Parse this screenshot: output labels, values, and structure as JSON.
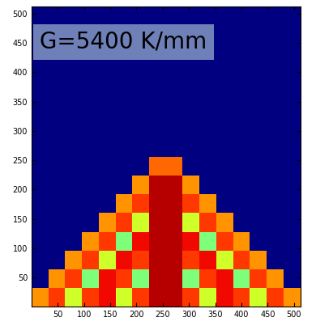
{
  "chart_data": {
    "type": "heatmap",
    "annotation": "G=5400 K/mm",
    "x_edges": [
      0,
      32,
      64,
      96,
      128,
      160,
      192,
      224,
      256,
      288,
      320,
      352,
      384,
      416,
      448,
      480,
      512
    ],
    "y_edges": [
      0,
      32,
      64,
      96,
      128,
      160,
      192,
      224,
      256,
      288,
      320,
      352,
      384,
      416,
      448,
      480,
      512
    ],
    "cells": [
      [
        0.75,
        0.85,
        0.6,
        0.85,
        0.9,
        0.6,
        0.85,
        0.95,
        0.95,
        0.85,
        0.6,
        0.9,
        0.85,
        0.6,
        0.85,
        0.75
      ],
      [
        0,
        0.75,
        0.85,
        0.5,
        0.9,
        0.85,
        0.5,
        0.95,
        0.95,
        0.5,
        0.85,
        0.9,
        0.5,
        0.85,
        0.75,
        0
      ],
      [
        0,
        0,
        0.75,
        0.85,
        0.6,
        0.9,
        0.85,
        0.95,
        0.95,
        0.85,
        0.9,
        0.6,
        0.85,
        0.75,
        0,
        0
      ],
      [
        0,
        0,
        0,
        0.75,
        0.85,
        0.5,
        0.9,
        0.95,
        0.95,
        0.9,
        0.5,
        0.85,
        0.75,
        0,
        0,
        0
      ],
      [
        0,
        0,
        0,
        0,
        0.75,
        0.85,
        0.6,
        0.95,
        0.95,
        0.6,
        0.85,
        0.75,
        0,
        0,
        0,
        0
      ],
      [
        0,
        0,
        0,
        0,
        0,
        0.75,
        0.85,
        0.95,
        0.95,
        0.85,
        0.75,
        0,
        0,
        0,
        0,
        0
      ],
      [
        0,
        0,
        0,
        0,
        0,
        0,
        0.75,
        0.95,
        0.95,
        0.75,
        0,
        0,
        0,
        0,
        0,
        0
      ],
      [
        0,
        0,
        0,
        0,
        0,
        0,
        0,
        0.8,
        0.8,
        0,
        0,
        0,
        0,
        0,
        0,
        0
      ],
      [
        0,
        0,
        0,
        0,
        0,
        0,
        0,
        0,
        0,
        0,
        0,
        0,
        0,
        0,
        0,
        0
      ],
      [
        0,
        0,
        0,
        0,
        0,
        0,
        0,
        0,
        0,
        0,
        0,
        0,
        0,
        0,
        0,
        0
      ],
      [
        0,
        0,
        0,
        0,
        0,
        0,
        0,
        0,
        0,
        0,
        0,
        0,
        0,
        0,
        0,
        0
      ],
      [
        0,
        0,
        0,
        0,
        0,
        0,
        0,
        0,
        0,
        0,
        0,
        0,
        0,
        0,
        0,
        0
      ],
      [
        0,
        0,
        0,
        0,
        0,
        0,
        0,
        0,
        0,
        0,
        0,
        0,
        0,
        0,
        0,
        0
      ],
      [
        0,
        0,
        0,
        0,
        0,
        0,
        0,
        0,
        0,
        0,
        0,
        0,
        0,
        0,
        0,
        0
      ],
      [
        0,
        0,
        0,
        0,
        0,
        0,
        0,
        0,
        0,
        0,
        0,
        0,
        0,
        0,
        0,
        0
      ],
      [
        0,
        0,
        0,
        0,
        0,
        0,
        0,
        0,
        0,
        0,
        0,
        0,
        0,
        0,
        0,
        0
      ]
    ],
    "zlim": [
      0,
      1
    ],
    "xlim": [
      0,
      512
    ],
    "ylim": [
      0,
      512
    ],
    "xticks": [
      50,
      100,
      150,
      200,
      250,
      300,
      350,
      400,
      450,
      500
    ],
    "yticks": [
      50,
      100,
      150,
      200,
      250,
      300,
      350,
      400,
      450,
      500
    ]
  }
}
